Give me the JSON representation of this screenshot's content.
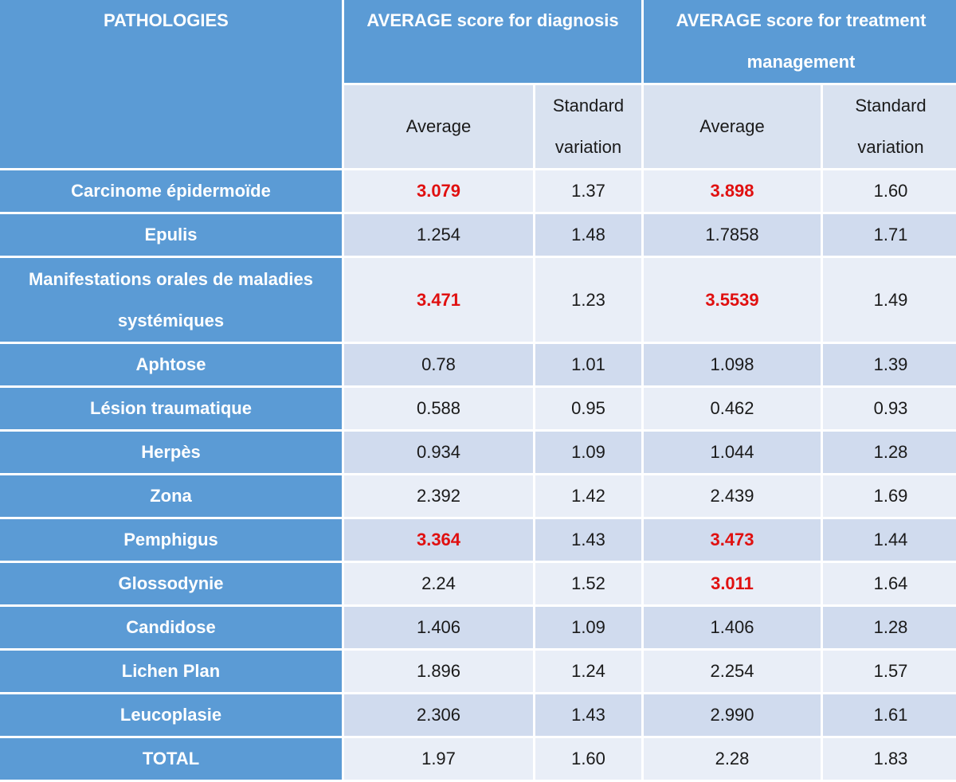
{
  "header": {
    "pathologies": "PATHOLOGIES",
    "diagnosis": "AVERAGE score for diagnosis",
    "treatment": "AVERAGE score for treatment management",
    "average": "Average",
    "std": "Standard variation"
  },
  "highlight_color": "#e01010",
  "rows": [
    {
      "name": "Carcinome épidermoïde",
      "diag_avg": "3.079",
      "diag_std": "1.37",
      "treat_avg": "3.898",
      "treat_std": "1.60",
      "diag_hl": true,
      "treat_hl": true
    },
    {
      "name": "Epulis",
      "diag_avg": "1.254",
      "diag_std": "1.48",
      "treat_avg": "1.7858",
      "treat_std": "1.71",
      "diag_hl": false,
      "treat_hl": false
    },
    {
      "name": "Manifestations orales de maladies systémiques",
      "diag_avg": "3.471",
      "diag_std": "1.23",
      "treat_avg": "3.5539",
      "treat_std": "1.49",
      "diag_hl": true,
      "treat_hl": true
    },
    {
      "name": "Aphtose",
      "diag_avg": "0.78",
      "diag_std": "1.01",
      "treat_avg": "1.098",
      "treat_std": "1.39",
      "diag_hl": false,
      "treat_hl": false
    },
    {
      "name": "Lésion traumatique",
      "diag_avg": "0.588",
      "diag_std": "0.95",
      "treat_avg": "0.462",
      "treat_std": "0.93",
      "diag_hl": false,
      "treat_hl": false
    },
    {
      "name": "Herpès",
      "diag_avg": "0.934",
      "diag_std": "1.09",
      "treat_avg": "1.044",
      "treat_std": "1.28",
      "diag_hl": false,
      "treat_hl": false
    },
    {
      "name": "Zona",
      "diag_avg": "2.392",
      "diag_std": "1.42",
      "treat_avg": "2.439",
      "treat_std": "1.69",
      "diag_hl": false,
      "treat_hl": false
    },
    {
      "name": "Pemphigus",
      "diag_avg": "3.364",
      "diag_std": "1.43",
      "treat_avg": "3.473",
      "treat_std": "1.44",
      "diag_hl": true,
      "treat_hl": true
    },
    {
      "name": "Glossodynie",
      "diag_avg": "2.24",
      "diag_std": "1.52",
      "treat_avg": "3.011",
      "treat_std": "1.64",
      "diag_hl": false,
      "treat_hl": true
    },
    {
      "name": "Candidose",
      "diag_avg": "1.406",
      "diag_std": "1.09",
      "treat_avg": "1.406",
      "treat_std": "1.28",
      "diag_hl": false,
      "treat_hl": false
    },
    {
      "name": "Lichen Plan",
      "diag_avg": "1.896",
      "diag_std": "1.24",
      "treat_avg": "2.254",
      "treat_std": "1.57",
      "diag_hl": false,
      "treat_hl": false
    },
    {
      "name": "Leucoplasie",
      "diag_avg": "2.306",
      "diag_std": "1.43",
      "treat_avg": "2.990",
      "treat_std": "1.61",
      "diag_hl": false,
      "treat_hl": false
    },
    {
      "name": "TOTAL",
      "diag_avg": "1.97",
      "diag_std": "1.60",
      "treat_avg": "2.28",
      "treat_std": "1.83",
      "diag_hl": false,
      "treat_hl": false
    }
  ]
}
